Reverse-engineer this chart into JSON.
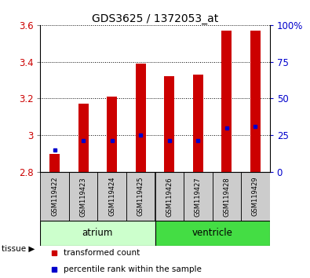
{
  "title": "GDS3625 / 1372053_at",
  "samples": [
    "GSM119422",
    "GSM119423",
    "GSM119424",
    "GSM119425",
    "GSM119426",
    "GSM119427",
    "GSM119428",
    "GSM119429"
  ],
  "transformed_count": [
    2.9,
    3.17,
    3.21,
    3.39,
    3.32,
    3.33,
    3.57,
    3.57
  ],
  "percentile_rank": [
    2.92,
    2.97,
    2.97,
    3.0,
    2.97,
    2.97,
    3.04,
    3.05
  ],
  "bar_bottom": 2.8,
  "ylim_min": 2.8,
  "ylim_max": 3.6,
  "bar_color": "#cc0000",
  "percentile_color": "#0000cc",
  "grid_color": "#000000",
  "tissue_groups": [
    {
      "name": "atrium",
      "indices": [
        0,
        1,
        2,
        3
      ],
      "color": "#ccffcc"
    },
    {
      "name": "ventricle",
      "indices": [
        4,
        5,
        6,
        7
      ],
      "color": "#44dd44"
    }
  ],
  "right_yticks": [
    0,
    25,
    50,
    75,
    100
  ],
  "right_ylabels": [
    "0",
    "25",
    "50",
    "75",
    "100%"
  ],
  "left_yticks": [
    2.8,
    3.0,
    3.2,
    3.4,
    3.6
  ],
  "left_yticklabels": [
    "2.8",
    "3",
    "3.2",
    "3.4",
    "3.6"
  ],
  "legend_items": [
    {
      "label": "transformed count",
      "color": "#cc0000"
    },
    {
      "label": "percentile rank within the sample",
      "color": "#0000cc"
    }
  ],
  "tissue_label": "tissue",
  "left_tick_color": "#cc0000",
  "right_label_color": "#0000cc",
  "title_color": "#000000",
  "bar_width": 0.35,
  "sample_box_color": "#cccccc",
  "atrium_color": "#ccffcc",
  "ventricle_color": "#44dd44"
}
